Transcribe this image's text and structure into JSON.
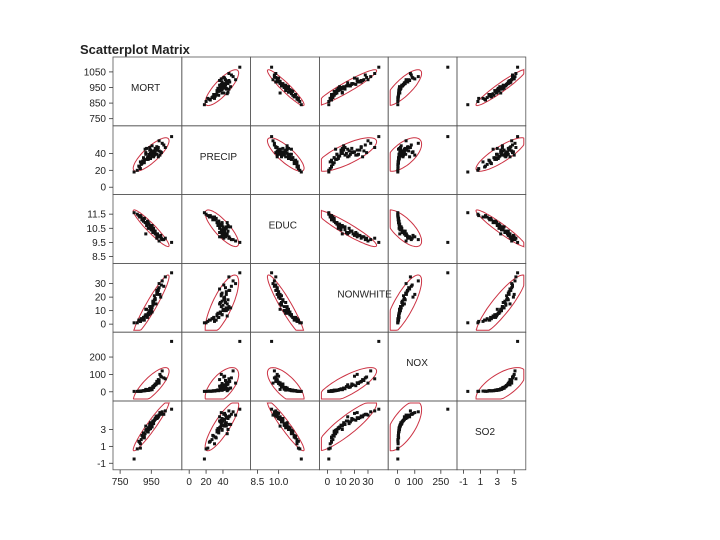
{
  "chart_data": {
    "type": "scatter",
    "subtype": "scatterplot-matrix",
    "title": "Scatterplot Matrix",
    "variables": [
      {
        "name": "MORT",
        "range": [
          730,
          1120
        ],
        "ticks": [
          750,
          850,
          950,
          1050
        ],
        "bottom_ticks": [
          "750",
          "950"
        ]
      },
      {
        "name": "PRECIP",
        "range": [
          -4,
          68
        ],
        "ticks": [
          0,
          20,
          40
        ],
        "bottom_ticks": [
          "0",
          "20",
          "40"
        ]
      },
      {
        "name": "EDUC",
        "range": [
          8.3,
          12.6
        ],
        "ticks": [
          8.5,
          9.5,
          10.5,
          11.5
        ],
        "bottom_ticks": [
          "8.5",
          "10.0"
        ]
      },
      {
        "name": "NONWHITE",
        "range": [
          -3,
          42
        ],
        "ticks": [
          0,
          10,
          20,
          30
        ],
        "bottom_ticks": [
          "0",
          "10",
          "20",
          "30"
        ]
      },
      {
        "name": "NOX",
        "range": [
          -30,
          320
        ],
        "ticks": [
          0,
          100,
          200
        ],
        "bottom_ticks": [
          "0",
          "100",
          "250"
        ]
      },
      {
        "name": "SO2",
        "range": [
          -1.3,
          5.9
        ],
        "ticks": [
          -1,
          1,
          3
        ],
        "bottom_ticks": [
          "-1",
          "1",
          "3",
          "5"
        ]
      }
    ],
    "points": [
      [
        980,
        45,
        10.1,
        15,
        40,
        4.5
      ],
      [
        1005,
        38,
        9.9,
        22,
        100,
        5.0
      ],
      [
        930,
        36,
        10.5,
        8,
        10,
        3.2
      ],
      [
        900,
        35,
        11.0,
        5,
        6,
        2.6
      ],
      [
        950,
        42,
        10.4,
        10,
        15,
        3.5
      ],
      [
        870,
        25,
        11.4,
        3,
        3,
        1.6
      ],
      [
        1030,
        50,
        9.7,
        28,
        80,
        4.8
      ],
      [
        960,
        40,
        10.2,
        14,
        30,
        4.0
      ],
      [
        920,
        33,
        10.9,
        6,
        8,
        2.9
      ],
      [
        945,
        44,
        10.6,
        12,
        20,
        3.8
      ],
      [
        985,
        48,
        9.8,
        25,
        60,
        4.6
      ],
      [
        880,
        30,
        11.3,
        2,
        4,
        1.3
      ],
      [
        1010,
        42,
        10.0,
        20,
        90,
        4.9
      ],
      [
        955,
        37,
        10.7,
        9,
        12,
        3.3
      ],
      [
        890,
        28,
        11.1,
        4,
        5,
        2.3
      ],
      [
        975,
        46,
        10.3,
        18,
        45,
        4.3
      ],
      [
        935,
        39,
        10.8,
        7,
        9,
        3.0
      ],
      [
        1000,
        55,
        9.6,
        30,
        50,
        4.7
      ],
      [
        905,
        32,
        11.2,
        3,
        7,
        2.0
      ],
      [
        965,
        43,
        10.5,
        16,
        25,
        3.7
      ],
      [
        915,
        41,
        10.1,
        11,
        14,
        3.4
      ],
      [
        995,
        36,
        9.9,
        26,
        70,
        4.5
      ],
      [
        940,
        47,
        10.6,
        13,
        18,
        3.6
      ],
      [
        860,
        20,
        11.5,
        1,
        2,
        0.7
      ],
      [
        970,
        38,
        10.2,
        21,
        35,
        4.1
      ],
      [
        925,
        35,
        11.0,
        5,
        10,
        2.8
      ],
      [
        1020,
        52,
        9.7,
        32,
        120,
        5.1
      ],
      [
        950,
        40,
        10.4,
        10,
        16,
        3.5
      ],
      [
        885,
        27,
        11.3,
        4,
        3,
        1.8
      ],
      [
        990,
        44,
        10.0,
        24,
        55,
        4.4
      ],
      [
        945,
        34,
        10.7,
        8,
        11,
        3.1
      ],
      [
        910,
        45,
        10.9,
        6,
        6,
        2.5
      ],
      [
        960,
        39,
        10.3,
        17,
        28,
        3.9
      ],
      [
        1040,
        47,
        9.8,
        35,
        75,
        5.2
      ],
      [
        935,
        37,
        10.8,
        9,
        13,
        3.2
      ],
      [
        975,
        41,
        10.1,
        19,
        40,
        4.2
      ],
      [
        895,
        31,
        11.1,
        3,
        5,
        2.1
      ],
      [
        955,
        49,
        10.6,
        12,
        22,
        3.6
      ],
      [
        1000,
        43,
        9.9,
        27,
        65,
        4.7
      ],
      [
        930,
        33,
        10.9,
        7,
        8,
        2.7
      ],
      [
        965,
        36,
        10.2,
        15,
        32,
        4.0
      ],
      [
        940,
        44,
        10.5,
        10,
        17,
        3.4
      ],
      [
        880,
        22,
        11.4,
        2,
        3,
        0.8
      ],
      [
        985,
        39,
        10.0,
        23,
        48,
        4.3
      ],
      [
        920,
        46,
        10.7,
        11,
        12,
        3.0
      ],
      [
        1015,
        41,
        9.8,
        29,
        85,
        4.8
      ],
      [
        950,
        38,
        10.4,
        13,
        19,
        3.6
      ],
      [
        905,
        29,
        11.2,
        5,
        6,
        2.2
      ],
      [
        970,
        42,
        10.3,
        18,
        36,
        4.1
      ],
      [
        935,
        35,
        10.8,
        8,
        10,
        3.1
      ],
      [
        995,
        47,
        9.9,
        25,
        58,
        4.5
      ],
      [
        945,
        40,
        10.6,
        11,
        15,
        3.5
      ],
      [
        875,
        24,
        11.3,
        3,
        4,
        1.5
      ],
      [
        960,
        37,
        10.2,
        16,
        27,
        3.9
      ],
      [
        990,
        44,
        10.1,
        22,
        52,
        4.4
      ],
      [
        915,
        39,
        10.9,
        7,
        9,
        2.9
      ],
      [
        840,
        18,
        11.6,
        1,
        2,
        -0.5
      ],
      [
        1080,
        60,
        9.5,
        38,
        290,
        5.4
      ]
    ],
    "ellipse_color": "#cc3344",
    "point_color": "#111111"
  }
}
